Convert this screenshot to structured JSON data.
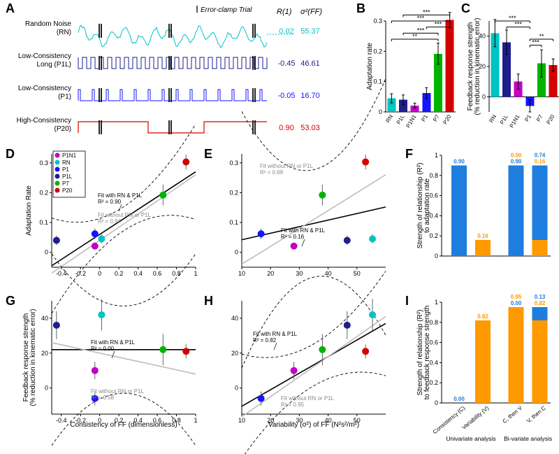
{
  "colors": {
    "RN": "#00c3c3",
    "P1L": "#1e1e8c",
    "P1": "#1414ff",
    "P1N1": "#c400c4",
    "P7": "#00b400",
    "P20": "#d40000",
    "axis": "#000000",
    "grid": "#e0e0e0",
    "fit_with": "#000000",
    "fit_without": "#bdbdbd",
    "conf": "#000000",
    "conf_light": "#cacaca",
    "blue": "#1f7ddd",
    "orange": "#ff9900"
  },
  "panelA": {
    "rows": [
      {
        "key": "RN",
        "label1": "Random Noise",
        "label2": "(RN)",
        "R": "0.02",
        "var": "55.37",
        "color": "#00c3c3",
        "pattern": "noise",
        "period": 0
      },
      {
        "key": "P1L",
        "label1": "Low-Consistency",
        "label2": "Long (P1L)",
        "R": "-0.45",
        "var": "46.61",
        "color": "#1e1e8c",
        "pattern": "square",
        "period": 6
      },
      {
        "key": "P1",
        "label1": "Low-Consistency",
        "label2": "(P1)",
        "R": "-0.05",
        "var": "16.70",
        "color": "#1414ff",
        "pattern": "pulse",
        "period": 20
      },
      {
        "key": "P20",
        "label1": "High-Consistency",
        "label2": "(P20)",
        "R": "0.90",
        "var": "53.03",
        "color": "#d40000",
        "pattern": "big",
        "period": 60
      }
    ],
    "header1": "Error-clamp Trial",
    "header2": "R(1)",
    "header3": "σ²(FF)"
  },
  "panelB": {
    "title": "Adaptation rate",
    "ylim": [
      0,
      0.3
    ],
    "yticks": [
      0,
      0.1,
      0.2,
      0.3
    ],
    "bars": [
      {
        "key": "RN",
        "v": 0.045,
        "e": 0.015,
        "c": "#00c3c3"
      },
      {
        "key": "P1L",
        "v": 0.04,
        "e": 0.016,
        "c": "#1e1e8c"
      },
      {
        "key": "P1N1",
        "v": 0.021,
        "e": 0.008,
        "c": "#c400c4"
      },
      {
        "key": "P1",
        "v": 0.062,
        "e": 0.018,
        "c": "#1414ff"
      },
      {
        "key": "P7",
        "v": 0.192,
        "e": 0.035,
        "c": "#00b400"
      },
      {
        "key": "P20",
        "v": 0.303,
        "e": 0.025,
        "c": "#d40000"
      }
    ],
    "sig": [
      {
        "a": 0,
        "b": 4,
        "y": 0.24,
        "t": "**"
      },
      {
        "a": 0,
        "b": 5,
        "y": 0.3,
        "t": "***"
      },
      {
        "a": 1,
        "b": 4,
        "y": 0.26,
        "t": "***"
      },
      {
        "a": 1,
        "b": 5,
        "y": 0.32,
        "t": "***"
      },
      {
        "a": 3,
        "b": 5,
        "y": 0.28,
        "t": "***"
      }
    ]
  },
  "panelC": {
    "title1": "Feedback response strength",
    "title2": "(% reduction in kinematic error)",
    "ylim": [
      -10,
      50
    ],
    "yticks": [
      0,
      20,
      40
    ],
    "bars": [
      {
        "key": "RN",
        "v": 42,
        "e": 9,
        "c": "#00c3c3"
      },
      {
        "key": "P1L",
        "v": 36,
        "e": 8,
        "c": "#1e1e8c"
      },
      {
        "key": "P1N1",
        "v": 10,
        "e": 5,
        "c": "#c400c4"
      },
      {
        "key": "P1",
        "v": -6,
        "e": 4,
        "c": "#1414ff"
      },
      {
        "key": "P7",
        "v": 22,
        "e": 9,
        "c": "#00b400"
      },
      {
        "key": "P20",
        "v": 21,
        "e": 4,
        "c": "#d40000"
      }
    ],
    "sig": [
      {
        "a": 0,
        "b": 3,
        "y": 50,
        "t": "***"
      },
      {
        "a": 1,
        "b": 3,
        "y": 46,
        "t": "***"
      },
      {
        "a": 3,
        "b": 5,
        "y": 38,
        "t": "**"
      },
      {
        "a": 3,
        "b": 4,
        "y": 34,
        "t": "***"
      }
    ]
  },
  "scatterCommon": {
    "points": {
      "P1N1": {
        "c": "#c400c4",
        "cons": -0.05,
        "var": 28.1,
        "adapt": 0.021,
        "aderr": 0.008,
        "fb": 10,
        "fberr": 5
      },
      "RN": {
        "c": "#00c3c3",
        "cons": 0.02,
        "var": 55.4,
        "adapt": 0.045,
        "aderr": 0.015,
        "fb": 42,
        "fberr": 9
      },
      "P1": {
        "c": "#1414ff",
        "cons": -0.05,
        "var": 16.7,
        "adapt": 0.062,
        "aderr": 0.018,
        "fb": -6,
        "fberr": 4
      },
      "P1L": {
        "c": "#1e1e8c",
        "cons": -0.45,
        "var": 46.6,
        "adapt": 0.04,
        "aderr": 0.016,
        "fb": 36,
        "fberr": 8
      },
      "P7": {
        "c": "#00b400",
        "cons": 0.66,
        "var": 38.0,
        "adapt": 0.192,
        "aderr": 0.035,
        "fb": 22,
        "fberr": 9
      },
      "P20": {
        "c": "#d40000",
        "cons": 0.9,
        "var": 53.0,
        "adapt": 0.303,
        "aderr": 0.025,
        "fb": 21,
        "fberr": 4
      }
    }
  },
  "panelD": {
    "xlabel": "Consistency of FF (dimensionless)",
    "ylabel": "Adaptation Rate",
    "xlim": [
      -0.5,
      1.0
    ],
    "xticks": [
      -0.4,
      -0.2,
      0,
      0.2,
      0.4,
      0.6,
      0.8,
      1.0
    ],
    "ylim": [
      -0.05,
      0.33
    ],
    "yticks": [
      0,
      0.1,
      0.2,
      0.3
    ],
    "withR2": "R² = 0.90",
    "withoutR2": "R² = 0.94",
    "withLabel": "Fit with RN & P1L",
    "withoutLabel": "Fit without RN or P1L"
  },
  "panelE": {
    "xlabel": "Variability (σ²) of FF (N²s²/m²)",
    "xlim": [
      10,
      60
    ],
    "xticks": [
      10,
      20,
      30,
      40,
      50
    ],
    "ylim": [
      -0.05,
      0.33
    ],
    "yticks": [
      0,
      0.1,
      0.2,
      0.3
    ],
    "withR2": "R² = 0.16",
    "withoutR2": "R² = 0.69",
    "withLabel": "Fit with RN & P1L",
    "withoutLabel": "Fit without RN or P1L"
  },
  "panelG": {
    "xlabel": "Consistency of FF (dimensionless)",
    "ylabel1": "Feedback response strength",
    "ylabel2": "(% reduction in kinematic error)",
    "xlim": [
      -0.5,
      1.0
    ],
    "xticks": [
      -0.4,
      -0.2,
      0,
      0.2,
      0.4,
      0.6,
      0.8,
      1.0
    ],
    "ylim": [
      -15,
      50
    ],
    "yticks": [
      0,
      20,
      40
    ],
    "withR2": "R² = 0.00",
    "withoutR2": "R² = 0.58",
    "withLabel": "Fit with RN & P1L",
    "withoutLabel": "Fit without RN or P1L"
  },
  "panelH": {
    "xlabel": "Variability (σ²) of FF (N²s²/m²)",
    "xlim": [
      10,
      60
    ],
    "xticks": [
      10,
      20,
      30,
      40,
      50
    ],
    "ylim": [
      -15,
      50
    ],
    "yticks": [
      0,
      20,
      40
    ],
    "withR2": "R² = 0.82",
    "withoutR2": "R² = 0.95",
    "withLabel": "Fit with RN & P1L",
    "withoutLabel": "Fit without RN or P1L"
  },
  "panelF": {
    "ylabel1": "Strength of relationship (R²)",
    "ylabel2": "to adaptation rate",
    "ylim": [
      0,
      1.0
    ],
    "yticks": [
      0,
      0.2,
      0.4,
      0.6,
      0.8,
      1.0
    ],
    "bars": [
      {
        "x": 0,
        "segs": [
          {
            "c": "blue",
            "v": 0.9
          }
        ],
        "topLabels": [
          {
            "t": "0.90",
            "c": "blue"
          }
        ]
      },
      {
        "x": 1,
        "segs": [
          {
            "c": "orange",
            "v": 0.16
          }
        ],
        "topLabels": [
          {
            "t": "0.16",
            "c": "orange"
          }
        ]
      },
      {
        "x": 2.4,
        "segs": [
          {
            "c": "blue",
            "v": 0.9
          },
          {
            "c": "orange",
            "v": 0.0
          }
        ],
        "topLabels": [
          {
            "t": "0.90",
            "c": "blue"
          },
          {
            "t": "0.00",
            "c": "orange"
          }
        ]
      },
      {
        "x": 3.4,
        "segs": [
          {
            "c": "orange",
            "v": 0.16
          },
          {
            "c": "blue",
            "v": 0.74
          }
        ],
        "topLabels": [
          {
            "t": "0.16",
            "c": "orange"
          },
          {
            "t": "0.74",
            "c": "blue"
          }
        ]
      }
    ]
  },
  "panelI": {
    "ylabel1": "Strength of relationship (R²)",
    "ylabel2": "to feedback response strength",
    "ylim": [
      0,
      1.0
    ],
    "yticks": [
      0,
      0.2,
      0.4,
      0.6,
      0.8,
      1.0
    ],
    "bars": [
      {
        "x": 0,
        "segs": [
          {
            "c": "blue",
            "v": 0.0
          }
        ],
        "topLabels": [
          {
            "t": "0.00",
            "c": "blue"
          }
        ]
      },
      {
        "x": 1,
        "segs": [
          {
            "c": "orange",
            "v": 0.82
          }
        ],
        "topLabels": [
          {
            "t": "0.82",
            "c": "orange"
          }
        ]
      },
      {
        "x": 2.4,
        "segs": [
          {
            "c": "blue",
            "v": 0.0
          },
          {
            "c": "orange",
            "v": 0.95
          }
        ],
        "topLabels": [
          {
            "t": "0.00",
            "c": "blue"
          },
          {
            "t": "0.95",
            "c": "orange"
          }
        ]
      },
      {
        "x": 3.4,
        "segs": [
          {
            "c": "orange",
            "v": 0.82
          },
          {
            "c": "blue",
            "v": 0.13
          }
        ],
        "topLabels": [
          {
            "t": "0.82",
            "c": "orange"
          },
          {
            "t": "0.13",
            "c": "blue"
          }
        ]
      }
    ],
    "xlabels": [
      "Consistency (C)",
      "Variability (V)",
      "C, then V",
      "V, then C"
    ],
    "groupLabels": [
      "Univariate analysis",
      "Bi-variate analysis"
    ]
  },
  "legend": {
    "items": [
      {
        "k": "P1N1",
        "c": "#c400c4"
      },
      {
        "k": "RN",
        "c": "#00c3c3"
      },
      {
        "k": "P1",
        "c": "#1414ff"
      },
      {
        "k": "P1L",
        "c": "#1e1e8c"
      },
      {
        "k": "P7",
        "c": "#00b400"
      },
      {
        "k": "P20",
        "c": "#d40000"
      }
    ]
  }
}
